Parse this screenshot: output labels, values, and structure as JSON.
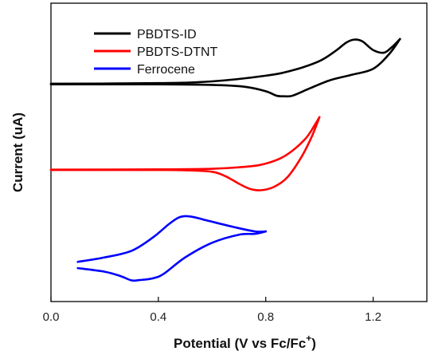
{
  "chart_data": {
    "type": "line",
    "title": "",
    "xlabel": "Potential (V vs Fc/Fc",
    "xlabel_superscript": "+",
    "xlabel_close": ")",
    "ylabel": "Current (uA)",
    "xlim": [
      0.0,
      1.4
    ],
    "ylim": [
      0,
      1
    ],
    "xticks": [
      0.0,
      0.4,
      0.8,
      1.2
    ],
    "xtick_labels": [
      "0.0",
      "0.4",
      "0.8",
      "1.2"
    ],
    "y_tick_labels_shown": false,
    "grid": false,
    "legend_position": "top-left",
    "series": [
      {
        "name": "PBDTS-ID",
        "color": "#000000",
        "forward": [
          [
            0.0,
            0.73
          ],
          [
            0.4,
            0.732
          ],
          [
            0.6,
            0.738
          ],
          [
            0.8,
            0.757
          ],
          [
            0.9,
            0.775
          ],
          [
            1.0,
            0.806
          ],
          [
            1.06,
            0.84
          ],
          [
            1.1,
            0.868
          ],
          [
            1.13,
            0.878
          ],
          [
            1.16,
            0.872
          ],
          [
            1.2,
            0.843
          ],
          [
            1.24,
            0.834
          ],
          [
            1.27,
            0.853
          ],
          [
            1.3,
            0.88
          ]
        ],
        "reverse": [
          [
            1.3,
            0.88
          ],
          [
            1.26,
            0.83
          ],
          [
            1.2,
            0.78
          ],
          [
            1.12,
            0.76
          ],
          [
            1.04,
            0.742
          ],
          [
            0.96,
            0.713
          ],
          [
            0.9,
            0.69
          ],
          [
            0.87,
            0.688
          ],
          [
            0.84,
            0.69
          ],
          [
            0.8,
            0.705
          ],
          [
            0.72,
            0.72
          ],
          [
            0.6,
            0.726
          ],
          [
            0.4,
            0.728
          ],
          [
            0.0,
            0.728
          ]
        ]
      },
      {
        "name": "PBDTS-DTNT",
        "color": "#ff0000",
        "forward": [
          [
            0.0,
            0.442
          ],
          [
            0.4,
            0.443
          ],
          [
            0.6,
            0.445
          ],
          [
            0.7,
            0.45
          ],
          [
            0.78,
            0.458
          ],
          [
            0.85,
            0.478
          ],
          [
            0.9,
            0.506
          ],
          [
            0.95,
            0.548
          ],
          [
            0.98,
            0.588
          ],
          [
            1.0,
            0.618
          ]
        ],
        "reverse": [
          [
            1.0,
            0.618
          ],
          [
            0.97,
            0.55
          ],
          [
            0.93,
            0.48
          ],
          [
            0.88,
            0.416
          ],
          [
            0.83,
            0.384
          ],
          [
            0.78,
            0.373
          ],
          [
            0.74,
            0.378
          ],
          [
            0.7,
            0.395
          ],
          [
            0.65,
            0.42
          ],
          [
            0.6,
            0.435
          ],
          [
            0.5,
            0.44
          ],
          [
            0.4,
            0.441
          ],
          [
            0.0,
            0.441
          ]
        ]
      },
      {
        "name": "Ferrocene",
        "color": "#0000ff",
        "forward": [
          [
            0.1,
            0.133
          ],
          [
            0.2,
            0.148
          ],
          [
            0.3,
            0.17
          ],
          [
            0.38,
            0.215
          ],
          [
            0.44,
            0.26
          ],
          [
            0.48,
            0.283
          ],
          [
            0.52,
            0.285
          ],
          [
            0.58,
            0.272
          ],
          [
            0.68,
            0.25
          ],
          [
            0.76,
            0.235
          ],
          [
            0.8,
            0.235
          ]
        ],
        "reverse": [
          [
            0.8,
            0.235
          ],
          [
            0.76,
            0.227
          ],
          [
            0.7,
            0.224
          ],
          [
            0.6,
            0.197
          ],
          [
            0.5,
            0.148
          ],
          [
            0.42,
            0.093
          ],
          [
            0.38,
            0.078
          ],
          [
            0.33,
            0.072
          ],
          [
            0.3,
            0.071
          ],
          [
            0.26,
            0.085
          ],
          [
            0.2,
            0.1
          ],
          [
            0.1,
            0.112
          ]
        ]
      }
    ]
  }
}
